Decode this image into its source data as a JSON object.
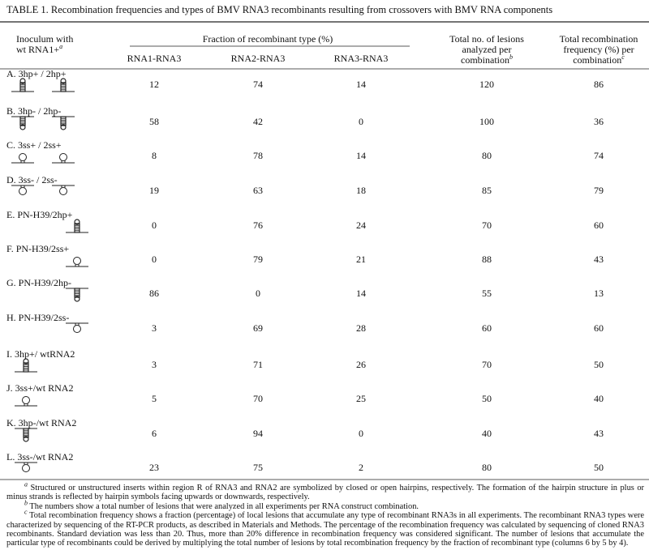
{
  "title": "TABLE 1. Recombination frequencies and types of BMV RNA3 recombinants resulting from crossovers with BMV RNA components",
  "header": {
    "inoculum": {
      "lines": [
        "Inoculum with",
        "wt RNA1+"
      ],
      "note": "a"
    },
    "fraction": "Fraction of recombinant type (%)",
    "types": [
      "RNA1-RNA3",
      "RNA2-RNA3",
      "RNA3-RNA3"
    ],
    "lesions": {
      "lines": [
        "Total no. of lesions",
        "analyzed per",
        "combination"
      ],
      "note": "b"
    },
    "frequency": {
      "lines": [
        "Total recombination",
        "frequency (%) per",
        "combination"
      ],
      "note": "c"
    }
  },
  "rows": [
    {
      "label": "A. 3hp+ / 2hp+",
      "values": [
        12,
        74,
        14,
        120,
        86
      ]
    },
    {
      "label": "B. 3hp- / 2hp-",
      "values": [
        58,
        42,
        0,
        100,
        36
      ]
    },
    {
      "label": "C. 3ss+ / 2ss+",
      "values": [
        8,
        78,
        14,
        80,
        74
      ]
    },
    {
      "label": "D. 3ss- / 2ss-",
      "values": [
        19,
        63,
        18,
        85,
        79
      ]
    },
    {
      "label": "E. PN-H39/2hp+",
      "values": [
        0,
        76,
        24,
        70,
        60
      ]
    },
    {
      "label": "F. PN-H39/2ss+",
      "values": [
        0,
        79,
        21,
        88,
        43
      ]
    },
    {
      "label": "G. PN-H39/2hp-",
      "values": [
        86,
        0,
        14,
        55,
        13
      ]
    },
    {
      "label": "H. PN-H39/2ss-",
      "values": [
        3,
        69,
        28,
        60,
        60
      ]
    },
    {
      "label": "I. 3hp+/ wtRNA2",
      "values": [
        3,
        71,
        26,
        70,
        50
      ]
    },
    {
      "label": "J. 3ss+/wt RNA2",
      "values": [
        5,
        70,
        25,
        50,
        40
      ]
    },
    {
      "label": "K. 3hp-/wt RNA2",
      "values": [
        6,
        94,
        0,
        40,
        43
      ]
    },
    {
      "label": "L. 3ss-/wt RNA2",
      "values": [
        23,
        75,
        2,
        80,
        50
      ]
    }
  ],
  "footnotes": [
    {
      "mark": "a",
      "text": "Structured or unstructured inserts within region R of RNA3 and RNA2 are symbolized by closed or open hairpins, respectively. The formation of the hairpin structure in plus or minus strands is reflected by hairpin symbols facing upwards or downwards, respectively."
    },
    {
      "mark": "b",
      "text": "The numbers show a total number of lesions that were analyzed in all experiments per RNA construct combination."
    },
    {
      "mark": "c",
      "text": "Total recombination frequency shows a fraction (percentage) of local lesions that accumulate any type of recombinant RNA3s in all experiments. The recombinant RNA3 types were characterized by sequencing of the RT-PCR products, as described in Materials and Methods. The percentage of the recombination frequency was calculated by sequencing of cloned RNA3 recombinants. Standard deviation was less than 20. Thus, more than 20% difference in recombination frequency was considered significant. The number of lesions that accumulate the particular type of recombinants could be derived by multiplying the total number of lesions by total recombination frequency by the fraction of recombinant type (columns 6 by 5 by 4)."
    }
  ]
}
